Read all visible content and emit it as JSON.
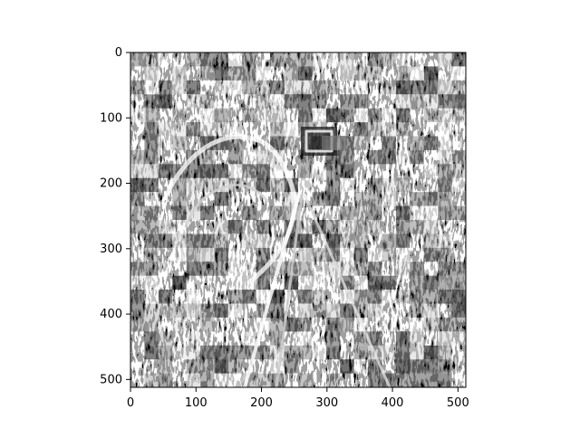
{
  "chart_data": {
    "type": "heatmap",
    "title": "",
    "xlabel": "",
    "ylabel": "",
    "colormap": "gray",
    "image_shape": [
      512,
      512
    ],
    "xlim": [
      0,
      512
    ],
    "ylim": [
      512,
      0
    ],
    "y_axis_inverted": true,
    "grid": false,
    "legend": "none",
    "xticks": [
      0,
      100,
      200,
      300,
      400,
      500
    ],
    "yticks": [
      0,
      100,
      200,
      300,
      400,
      500
    ],
    "xtick_labels": [
      "0",
      "100",
      "200",
      "300",
      "400",
      "500"
    ],
    "ytick_labels": [
      "0",
      "100",
      "200",
      "300",
      "400",
      "500"
    ]
  }
}
